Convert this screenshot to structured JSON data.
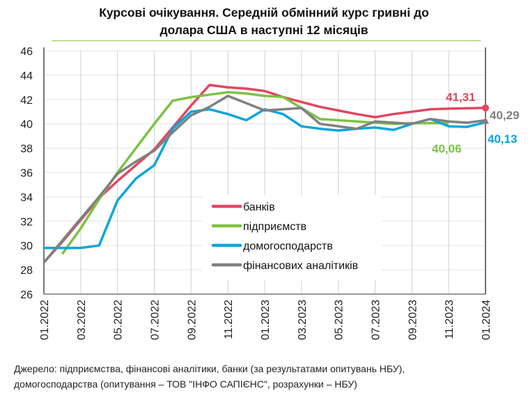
{
  "chart_data": {
    "type": "line",
    "title_line1": "Курсові очікування. Середній обмінний курс гривні до",
    "title_line2": "долара США в наступні 12 місяців",
    "xlabel": "",
    "ylabel": "",
    "ylim": [
      26,
      46
    ],
    "yticks": [
      "26",
      "28",
      "30",
      "32",
      "34",
      "36",
      "38",
      "40",
      "42",
      "44",
      "46"
    ],
    "xticks": [
      "01.2022",
      "03.2022",
      "05.2022",
      "07.2022",
      "09.2022",
      "11.2022",
      "01.2023",
      "03.2023",
      "05.2023",
      "07.2023",
      "09.2023",
      "11.2023",
      "01.2024"
    ],
    "grid": true,
    "legend_position": "center-right",
    "series": [
      {
        "name": "банків",
        "color": "#e0475f",
        "values": [
          28.6,
          30.3,
          32.1,
          33.9,
          35.3,
          36.6,
          37.9,
          39.7,
          41.5,
          43.2,
          43.0,
          42.9,
          42.7,
          42.2,
          41.8,
          41.4,
          41.1,
          40.8,
          40.55,
          40.8,
          41.0,
          41.2,
          41.25,
          41.28,
          41.31
        ],
        "end_label": "41,31"
      },
      {
        "name": "підприємств",
        "color": "#7dc242",
        "values": [
          null,
          29.3,
          31.4,
          33.8,
          36.0,
          38.0,
          40.0,
          41.9,
          42.2,
          42.4,
          42.6,
          42.5,
          42.3,
          42.2,
          41.3,
          40.4,
          40.3,
          40.2,
          40.1,
          40.0,
          40.05,
          40.06,
          40.06,
          null,
          null
        ],
        "end_label": "40,06"
      },
      {
        "name": "домогосподарств",
        "color": "#0ba5dd",
        "values": [
          29.8,
          29.8,
          29.8,
          30.0,
          33.7,
          35.5,
          36.6,
          39.6,
          41.0,
          41.2,
          40.8,
          40.3,
          41.2,
          40.8,
          39.8,
          39.6,
          39.45,
          39.6,
          39.7,
          39.5,
          40.0,
          40.4,
          39.8,
          39.75,
          40.13
        ],
        "end_label": "40,13"
      },
      {
        "name": "фінансових аналітиків",
        "color": "#808080",
        "values": [
          28.6,
          30.4,
          32.2,
          34.0,
          35.9,
          36.9,
          37.8,
          39.3,
          40.7,
          41.4,
          42.3,
          41.7,
          41.1,
          41.2,
          41.3,
          40.0,
          39.8,
          39.6,
          40.2,
          40.1,
          40.0,
          40.4,
          40.2,
          40.1,
          40.29
        ],
        "end_label": "40,29"
      }
    ]
  },
  "source_line1": "Джерело: підприємства, фінансові аналітики, банки (за результатами опитувань НБУ),",
  "source_line2": "домогосподарства (опитування – ТОВ \"ІНФО САПІЄНС\", розрахунки – НБУ)"
}
